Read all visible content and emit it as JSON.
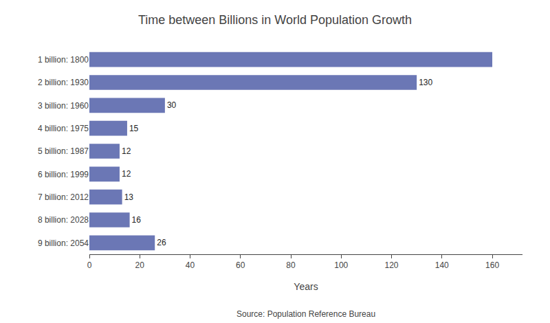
{
  "chart_data": {
    "type": "bar",
    "orientation": "horizontal",
    "title": "Time between Billions in World Population Growth",
    "categories": [
      "1 billion: 1800",
      "2 billion: 1930",
      "3 billion: 1960",
      "4 billion: 1975",
      "5 billion: 1987",
      "6 billion: 1999",
      "7 billion: 2012",
      "8 billion: 2028",
      "9 billion: 2054"
    ],
    "values": [
      160,
      130,
      30,
      15,
      12,
      12,
      13,
      16,
      26
    ],
    "value_labels": [
      null,
      "130",
      "30",
      "15",
      "12",
      "12",
      "13",
      "16",
      "26"
    ],
    "data_labels": true,
    "color": "#6b77b5",
    "xlabel": "Years",
    "xlim": [
      0,
      172
    ],
    "xticks": [
      0,
      20,
      40,
      60,
      80,
      100,
      120,
      140,
      160
    ],
    "grid": false,
    "annotations": [
      "Source: Population Reference Bureau"
    ]
  }
}
